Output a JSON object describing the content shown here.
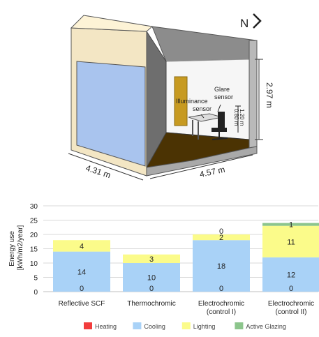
{
  "room": {
    "north_label": "N",
    "height_label": "2.97 m",
    "width_label": "4.31 m",
    "depth_label": "4.57 m",
    "glare_sensor_label": [
      "Glare",
      "sensor"
    ],
    "illuminance_sensor_label": [
      "Illuminance",
      "sensor"
    ],
    "sensor_height_1": "1.20 m",
    "sensor_height_2": "0.80 m"
  },
  "chart_data": {
    "type": "bar",
    "stacked": true,
    "ylabel": [
      "Energy use",
      "[kWh/m2/year]"
    ],
    "ylim": [
      0,
      30
    ],
    "yticks": [
      0,
      5,
      10,
      15,
      20,
      25,
      30
    ],
    "categories": [
      [
        "Reflective SCF"
      ],
      [
        "Thermochromic"
      ],
      [
        "Electrochromic",
        "(control I)"
      ],
      [
        "Electrochromic",
        "(control II)"
      ]
    ],
    "series": [
      {
        "name": "Heating",
        "color": "#f23c3c",
        "values": [
          0,
          0,
          0,
          0
        ]
      },
      {
        "name": "Cooling",
        "color": "#a9d2f7",
        "values": [
          14,
          10,
          18,
          12
        ]
      },
      {
        "name": "Lighting",
        "color": "#fbfb8a",
        "values": [
          4,
          3,
          2,
          11
        ]
      },
      {
        "name": "Active Glazing",
        "color": "#8cc58c",
        "values": [
          0,
          0,
          0,
          1
        ]
      }
    ],
    "data_labels": [
      [
        "0",
        "14",
        "4"
      ],
      [
        "0",
        "10",
        "3"
      ],
      [
        "0",
        "18",
        "2",
        "0"
      ],
      [
        "0",
        "12",
        "11",
        "1"
      ]
    ],
    "legend_position": "bottom"
  }
}
